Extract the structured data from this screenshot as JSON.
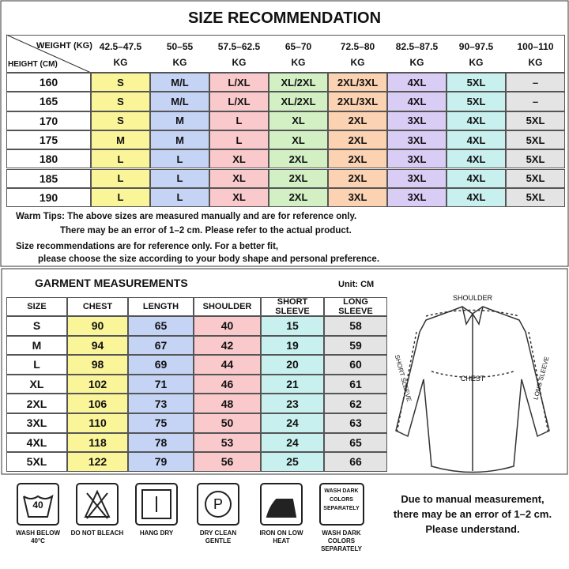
{
  "size_recommendation": {
    "title": "SIZE RECOMMENDATION",
    "weight_header": "WEIGHT (KG)",
    "height_header": "HEIGHT (CM)",
    "weight_columns": [
      {
        "range": "42.5–47.5",
        "unit": "KG"
      },
      {
        "range": "50–55",
        "unit": "KG"
      },
      {
        "range": "57.5–62.5",
        "unit": "KG"
      },
      {
        "range": "65–70",
        "unit": "KG"
      },
      {
        "range": "72.5–80",
        "unit": "KG"
      },
      {
        "range": "82.5–87.5",
        "unit": "KG"
      },
      {
        "range": "90–97.5",
        "unit": "KG"
      },
      {
        "range": "100–110",
        "unit": "KG"
      }
    ],
    "rows": [
      {
        "height": 160,
        "sizes": [
          "S",
          "M/L",
          "L/XL",
          "XL/2XL",
          "2XL/3XL",
          "4XL",
          "5XL",
          "–"
        ]
      },
      {
        "height": 165,
        "sizes": [
          "S",
          "M/L",
          "L/XL",
          "XL/2XL",
          "2XL/3XL",
          "4XL",
          "5XL",
          "–"
        ]
      },
      {
        "height": 170,
        "sizes": [
          "S",
          "M",
          "L",
          "XL",
          "2XL",
          "3XL",
          "4XL",
          "5XL"
        ]
      },
      {
        "height": 175,
        "sizes": [
          "M",
          "M",
          "L",
          "XL",
          "2XL",
          "3XL",
          "4XL",
          "5XL"
        ]
      },
      {
        "height": 180,
        "sizes": [
          "L",
          "L",
          "XL",
          "2XL",
          "2XL",
          "3XL",
          "4XL",
          "5XL"
        ]
      },
      {
        "height": 185,
        "sizes": [
          "L",
          "L",
          "XL",
          "2XL",
          "2XL",
          "3XL",
          "4XL",
          "5XL"
        ]
      },
      {
        "height": 190,
        "sizes": [
          "L",
          "L",
          "XL",
          "2XL",
          "3XL",
          "3XL",
          "4XL",
          "5XL"
        ]
      }
    ],
    "tips": [
      "Warm Tips: The above sizes are measured manually and are for reference only.",
      "There may be an error of 1–2 cm. Please refer to the actual product.",
      "Size recommendations are for reference only. For a better fit,",
      "please choose the size according to your body shape and personal preference."
    ]
  },
  "garment": {
    "title": "GARMENT MEASUREMENTS",
    "unit": "Unit: CM",
    "headers": [
      "SIZE",
      "CHEST",
      "LENGTH",
      "SHOULDER",
      "SHORT SLEEVE",
      "LONG SLEEVE"
    ],
    "rows": [
      [
        "S",
        90,
        65,
        40,
        15,
        58
      ],
      [
        "M",
        94,
        67,
        42,
        19,
        59
      ],
      [
        "L",
        98,
        69,
        44,
        20,
        60
      ],
      [
        "XL",
        102,
        71,
        46,
        21,
        61
      ],
      [
        "2XL",
        106,
        73,
        48,
        23,
        62
      ],
      [
        "3XL",
        110,
        75,
        50,
        24,
        63
      ],
      [
        "4XL",
        118,
        78,
        53,
        24,
        65
      ],
      [
        "5XL",
        122,
        79,
        56,
        25,
        66
      ]
    ]
  },
  "diagram": {
    "shoulder": "SHOULDER",
    "chest": "CHEST",
    "short_sleeve": "SHORT SLEEVE",
    "long_sleeve": "LONG SLEEVE"
  },
  "care": [
    {
      "icon_text": "40",
      "label": "WASH BELOW 40°C"
    },
    {
      "label": "DO NOT BLEACH"
    },
    {
      "label": "HANG DRY"
    },
    {
      "icon_text": "P",
      "label": "DRY CLEAN GENTLE"
    },
    {
      "label": "IRON ON LOW HEAT"
    },
    {
      "icon_text": "WASH DARK COLORS SEPARATELY",
      "label": "WASH DARK COLORS SEPARATELY"
    }
  ],
  "note": [
    "Due to manual measurement,",
    "there may be an error of 1–2 cm.",
    "Please understand."
  ]
}
